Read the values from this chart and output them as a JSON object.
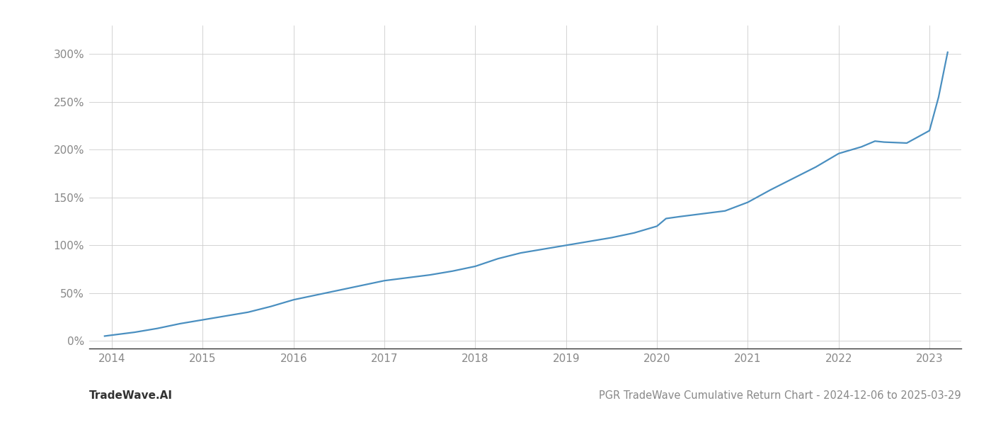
{
  "title": "PGR TradeWave Cumulative Return Chart - 2024-12-06 to 2025-03-29",
  "watermark": "TradeWave.AI",
  "line_color": "#4a8fc0",
  "background_color": "#ffffff",
  "grid_color": "#cccccc",
  "x_points": [
    2013.92,
    2014.0,
    2014.25,
    2014.5,
    2014.75,
    2015.0,
    2015.25,
    2015.5,
    2015.75,
    2016.0,
    2016.25,
    2016.5,
    2016.75,
    2017.0,
    2017.25,
    2017.5,
    2017.75,
    2018.0,
    2018.25,
    2018.5,
    2018.75,
    2019.0,
    2019.25,
    2019.5,
    2019.75,
    2020.0,
    2020.1,
    2020.25,
    2020.5,
    2020.75,
    2021.0,
    2021.25,
    2021.5,
    2021.75,
    2022.0,
    2022.25,
    2022.4,
    2022.5,
    2022.75,
    2023.0,
    2023.1,
    2023.2
  ],
  "y_points": [
    5,
    6,
    9,
    13,
    18,
    22,
    26,
    30,
    36,
    43,
    48,
    53,
    58,
    63,
    66,
    69,
    73,
    78,
    86,
    92,
    96,
    100,
    104,
    108,
    113,
    120,
    128,
    130,
    133,
    136,
    145,
    158,
    170,
    182,
    196,
    203,
    209,
    208,
    207,
    220,
    255,
    302
  ],
  "xlim": [
    2013.75,
    2023.35
  ],
  "ylim": [
    -8,
    330
  ],
  "yticks": [
    0,
    50,
    100,
    150,
    200,
    250,
    300
  ],
  "xticks": [
    2014,
    2015,
    2016,
    2017,
    2018,
    2019,
    2020,
    2021,
    2022,
    2023
  ],
  "linewidth": 1.6,
  "title_fontsize": 10.5,
  "watermark_fontsize": 11,
  "tick_fontsize": 11
}
